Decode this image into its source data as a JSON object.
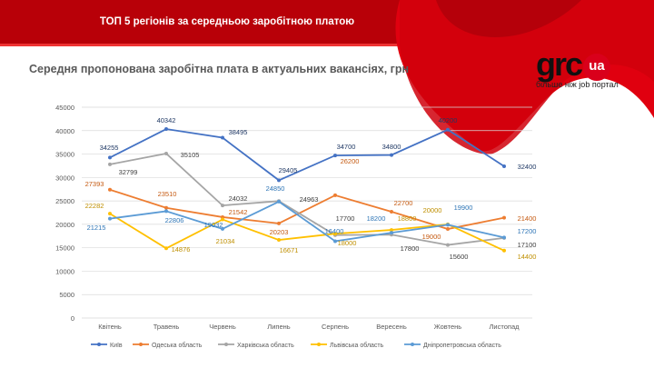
{
  "header": {
    "title": "ТОП 5 регіонів за середньою заробітною платою",
    "subtitle": "Середня пропонована  заробітна плата в актуальних вакансіях,  грн"
  },
  "logo": {
    "text": "grc",
    "badge": "ua",
    "tagline": "більше ніж job портал"
  },
  "colors": {
    "brand": "#c00010"
  },
  "chart_data": {
    "type": "line",
    "categories": [
      "Квітень",
      "Травень",
      "Червень",
      "Липень",
      "Серпень",
      "Вересень",
      "Жовтень",
      "Листопад"
    ],
    "ylim": [
      0,
      45000
    ],
    "yticks": [
      0,
      5000,
      10000,
      15000,
      20000,
      25000,
      30000,
      35000,
      40000,
      45000
    ],
    "grid": true,
    "legend": "bottom",
    "series": [
      {
        "name": "Київ",
        "color": "#4472c4",
        "label_color": "#1f3864",
        "values": [
          34255,
          40342,
          38495,
          29405,
          34700,
          34800,
          40200,
          32400
        ]
      },
      {
        "name": "Одеська область",
        "color": "#ed7d31",
        "label_color": "#c55a11",
        "values": [
          27393,
          23510,
          21542,
          20203,
          26200,
          22700,
          19000,
          21400
        ]
      },
      {
        "name": "Харківська область",
        "color": "#a5a5a5",
        "label_color": "#404040",
        "values": [
          32799,
          35105,
          24032,
          24963,
          17700,
          17800,
          15600,
          17100
        ]
      },
      {
        "name": "Львівська область",
        "color": "#ffc000",
        "label_color": "#bf8f00",
        "values": [
          22282,
          14876,
          21034,
          16671,
          18000,
          18800,
          20000,
          14400
        ]
      },
      {
        "name": "Дніпропетровська область",
        "color": "#5b9bd5",
        "label_color": "#2e75b6",
        "values": [
          21215,
          22806,
          19032,
          24850,
          16400,
          18200,
          19900,
          17200
        ]
      }
    ]
  }
}
